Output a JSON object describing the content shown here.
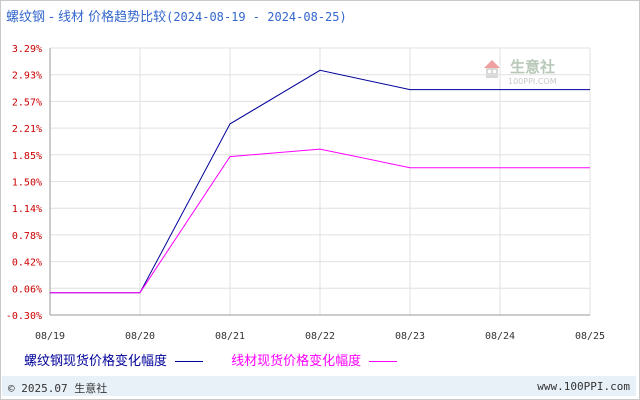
{
  "header": {
    "title": "螺纹钢 - 线材 价格趋势比较",
    "date_range": "(2024-08-19 - 2024-08-25)"
  },
  "chart_data": {
    "type": "line",
    "categories": [
      "08/19",
      "08/20",
      "08/21",
      "08/22",
      "08/23",
      "08/24",
      "08/25"
    ],
    "yticks": [
      "3.29%",
      "2.93%",
      "2.57%",
      "2.21%",
      "1.85%",
      "1.50%",
      "1.14%",
      "0.78%",
      "0.42%",
      "0.06%",
      "-0.30%"
    ],
    "ylim": [
      -0.3,
      3.29
    ],
    "grid": true,
    "legend_position": "bottom",
    "series": [
      {
        "name": "螺纹钢现货价格变化幅度",
        "color": "#000099",
        "values": [
          0.0,
          0.0,
          2.27,
          2.99,
          2.73,
          2.73,
          2.73
        ]
      },
      {
        "name": "线材现货价格变化幅度",
        "color": "#ff00ff",
        "values": [
          0.0,
          0.0,
          1.83,
          1.93,
          1.68,
          1.68,
          1.68
        ]
      }
    ]
  },
  "watermark": {
    "text": "生意社",
    "url": "100PPI.COM"
  },
  "footer": {
    "copyright": "© 2025.07 生意社",
    "website": "www.100PPI.com"
  }
}
